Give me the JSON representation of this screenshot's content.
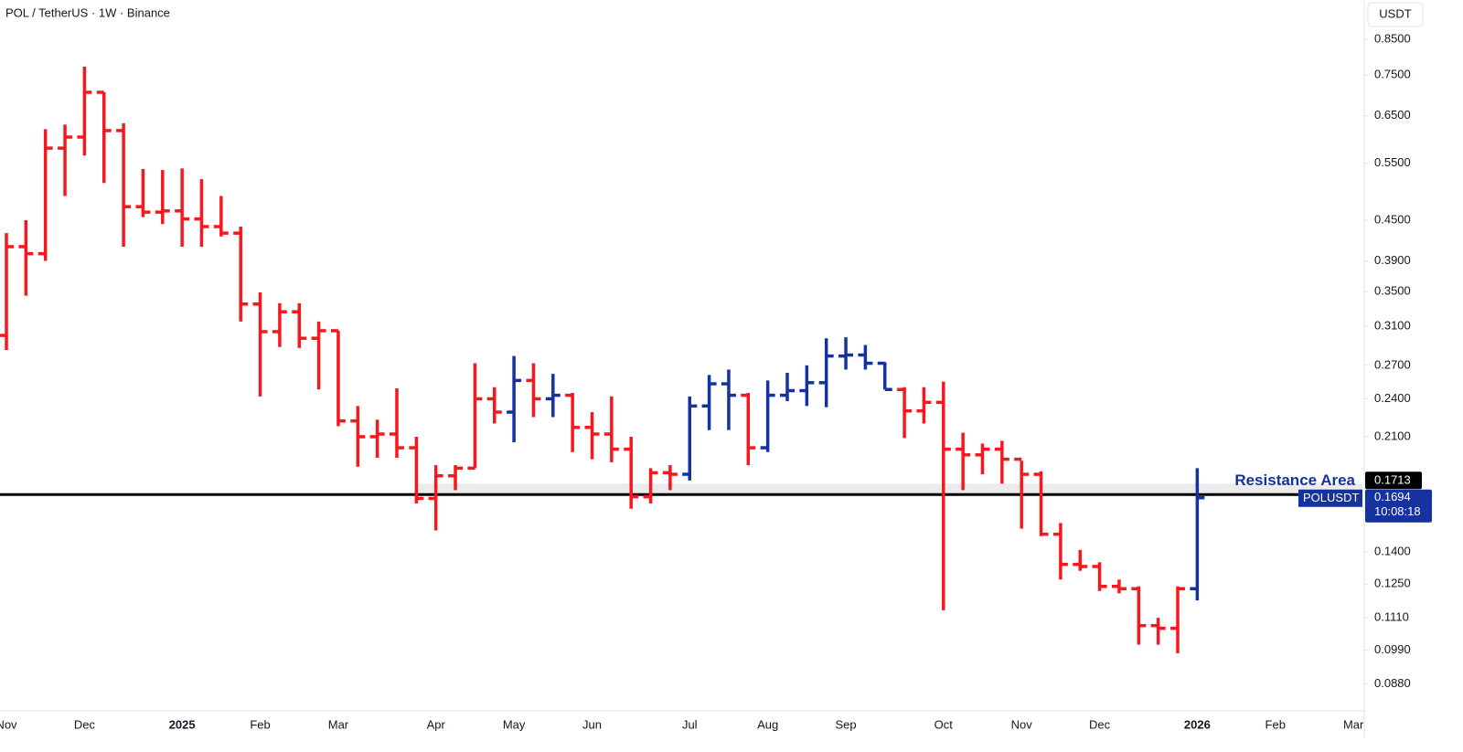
{
  "chart_data": {
    "type": "ohlc",
    "title": "POL / TetherUS · 1W · Binance",
    "currency": "USDT",
    "log_scale": true,
    "grid": false,
    "ylim": [
      0.08,
      0.977
    ],
    "yticks": [
      {
        "value": 0.85,
        "label": "0.8500"
      },
      {
        "value": 0.75,
        "label": "0.7500"
      },
      {
        "value": 0.65,
        "label": "0.6500"
      },
      {
        "value": 0.55,
        "label": "0.5500"
      },
      {
        "value": 0.45,
        "label": "0.4500"
      },
      {
        "value": 0.39,
        "label": "0.3900"
      },
      {
        "value": 0.35,
        "label": "0.3500"
      },
      {
        "value": 0.31,
        "label": "0.3100"
      },
      {
        "value": 0.27,
        "label": "0.2700"
      },
      {
        "value": 0.24,
        "label": "0.2400"
      },
      {
        "value": 0.21,
        "label": "0.2100"
      },
      {
        "value": 0.14,
        "label": "0.1400"
      },
      {
        "value": 0.125,
        "label": "0.1250"
      },
      {
        "value": 0.111,
        "label": "0.1110"
      },
      {
        "value": 0.099,
        "label": "0.0990"
      },
      {
        "value": 0.088,
        "label": "0.0880"
      }
    ],
    "categories": [
      "Nov",
      null,
      null,
      null,
      "Dec",
      null,
      null,
      null,
      null,
      "2025",
      null,
      null,
      null,
      "Feb",
      null,
      null,
      null,
      "Mar",
      null,
      null,
      null,
      null,
      "Apr",
      null,
      null,
      null,
      "May",
      null,
      null,
      null,
      "Jun",
      null,
      null,
      null,
      null,
      "Jul",
      null,
      null,
      null,
      "Aug",
      null,
      null,
      null,
      "Sep",
      null,
      null,
      null,
      null,
      "Oct",
      null,
      null,
      null,
      "Nov",
      null,
      null,
      null,
      "Dec",
      null,
      null,
      null,
      null,
      "2026",
      null,
      null,
      null,
      "Feb",
      null,
      null,
      null,
      "Mar"
    ],
    "opens": [
      0.3,
      0.41,
      0.4,
      0.58,
      0.603,
      0.706,
      0.617,
      0.472,
      0.463,
      0.465,
      0.452,
      0.44,
      0.43,
      0.335,
      0.304,
      0.326,
      0.297,
      0.305,
      0.222,
      0.21,
      0.212,
      0.202,
      0.169,
      0.183,
      0.188,
      0.24,
      0.229,
      0.256,
      0.24,
      0.243,
      0.217,
      0.212,
      0.201,
      0.17,
      0.185,
      0.184,
      0.234,
      0.253,
      0.243,
      0.202,
      0.243,
      0.247,
      0.254,
      0.279,
      0.28,
      0.272,
      0.248,
      0.23,
      0.237,
      0.201,
      0.197,
      0.201,
      0.194,
      0.184,
      0.149,
      0.134,
      0.133,
      0.124,
      0.123,
      0.108,
      0.107,
      0.123,
      null,
      null,
      null,
      null,
      null,
      null,
      null,
      null
    ],
    "highs": [
      0.43,
      0.45,
      0.62,
      0.63,
      0.773,
      0.706,
      0.633,
      0.539,
      0.537,
      0.54,
      0.52,
      0.49,
      0.44,
      0.349,
      0.336,
      0.336,
      0.315,
      0.305,
      0.234,
      0.223,
      0.249,
      0.21,
      0.19,
      0.19,
      0.272,
      0.25,
      0.279,
      0.272,
      0.262,
      0.245,
      0.229,
      0.242,
      0.21,
      0.188,
      0.19,
      0.242,
      0.261,
      0.266,
      0.245,
      0.256,
      0.263,
      0.27,
      0.297,
      0.298,
      0.29,
      0.273,
      0.25,
      0.25,
      0.255,
      0.213,
      0.205,
      0.207,
      0.193,
      0.186,
      0.155,
      0.141,
      0.135,
      0.127,
      0.124,
      0.111,
      0.124,
      0.188,
      null,
      null,
      null,
      null,
      null,
      null,
      null,
      null
    ],
    "lows": [
      0.285,
      0.345,
      0.39,
      0.49,
      0.565,
      0.513,
      0.41,
      0.455,
      0.444,
      0.41,
      0.41,
      0.425,
      0.315,
      0.242,
      0.288,
      0.287,
      0.248,
      0.218,
      0.189,
      0.195,
      0.195,
      0.166,
      0.151,
      0.174,
      0.188,
      0.22,
      0.206,
      0.225,
      0.225,
      0.199,
      0.194,
      0.192,
      0.163,
      0.166,
      0.174,
      0.18,
      0.215,
      0.215,
      0.19,
      0.199,
      0.238,
      0.234,
      0.233,
      0.266,
      0.266,
      0.248,
      0.209,
      0.22,
      0.114,
      0.174,
      0.184,
      0.178,
      0.152,
      0.148,
      0.127,
      0.131,
      0.122,
      0.121,
      0.101,
      0.101,
      0.098,
      0.118,
      null,
      null,
      null,
      null,
      null,
      null,
      null,
      null
    ],
    "closes": [
      0.41,
      0.4,
      0.58,
      0.603,
      0.706,
      0.617,
      0.472,
      0.463,
      0.465,
      0.452,
      0.44,
      0.43,
      0.335,
      0.304,
      0.326,
      0.297,
      0.305,
      0.222,
      0.21,
      0.212,
      0.202,
      0.169,
      0.183,
      0.188,
      0.24,
      0.229,
      0.256,
      0.24,
      0.243,
      0.217,
      0.212,
      0.201,
      0.17,
      0.185,
      0.184,
      0.234,
      0.253,
      0.243,
      0.202,
      0.243,
      0.247,
      0.254,
      0.279,
      0.28,
      0.272,
      0.248,
      0.23,
      0.237,
      0.201,
      0.197,
      0.201,
      0.194,
      0.184,
      0.149,
      0.134,
      0.133,
      0.124,
      0.123,
      0.108,
      0.107,
      0.123,
      0.1694,
      null,
      null,
      null,
      null,
      null,
      null,
      null,
      null
    ],
    "bar_colors": [
      "#f7171f",
      "#f7171f",
      "#f7171f",
      "#f7171f",
      "#f7171f",
      "#f7171f",
      "#f7171f",
      "#f7171f",
      "#f7171f",
      "#f7171f",
      "#f7171f",
      "#f7171f",
      "#f7171f",
      "#f7171f",
      "#f7171f",
      "#f7171f",
      "#f7171f",
      "#f7171f",
      "#f7171f",
      "#f7171f",
      "#f7171f",
      "#f7171f",
      "#f7171f",
      "#f7171f",
      "#f7171f",
      "#f7171f",
      "#1631a0",
      "#f7171f",
      "#1631a0",
      "#f7171f",
      "#f7171f",
      "#f7171f",
      "#f7171f",
      "#f7171f",
      "#f7171f",
      "#1631a0",
      "#1631a0",
      "#1631a0",
      "#f7171f",
      "#1631a0",
      "#1631a0",
      "#1631a0",
      "#1631a0",
      "#1631a0",
      "#1631a0",
      "#1631a0",
      "#f7171f",
      "#f7171f",
      "#f7171f",
      "#f7171f",
      "#f7171f",
      "#f7171f",
      "#f7171f",
      "#f7171f",
      "#f7171f",
      "#f7171f",
      "#f7171f",
      "#f7171f",
      "#f7171f",
      "#f7171f",
      "#f7171f",
      "#1631a0",
      null,
      null,
      null,
      null,
      null,
      null,
      null,
      null
    ],
    "resistance": {
      "label": "Resistance Area",
      "value": 0.1713,
      "zone_top": 0.178,
      "color": "#000000",
      "zone_color": "#ebebeb",
      "label_color": "#1631a0"
    },
    "last_price": {
      "symbol": "POLUSDT",
      "value": 0.1694,
      "countdown": "10:08:18",
      "color": "#1631a0"
    }
  }
}
